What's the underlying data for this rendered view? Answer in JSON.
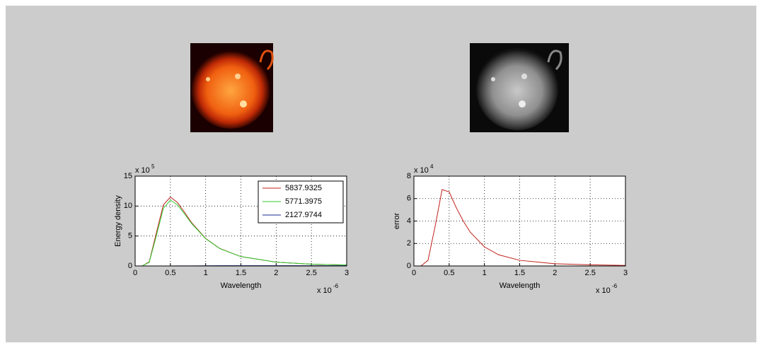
{
  "chart_data": [
    {
      "type": "line",
      "xlabel": "Wavelength",
      "ylabel": "Energy density",
      "x": [
        0,
        0.1,
        0.2,
        0.3,
        0.4,
        0.5,
        0.6,
        0.7,
        0.8,
        1.0,
        1.2,
        1.5,
        2.0,
        2.5,
        3.0
      ],
      "series": [
        {
          "name": "5837.9325",
          "color": "#c0201a",
          "values": [
            0,
            0,
            0.68,
            5.48,
            10.2,
            11.5,
            10.6,
            8.96,
            7.24,
            4.59,
            2.92,
            1.56,
            0.64,
            0.3,
            0.16
          ]
        },
        {
          "name": "5771.3975",
          "color": "#2ecc2e",
          "values": [
            0,
            0,
            0.6,
            5.0,
            9.6,
            11.0,
            10.2,
            8.7,
            7.1,
            4.55,
            2.9,
            1.56,
            0.64,
            0.3,
            0.16
          ]
        },
        {
          "name": "2127.9744",
          "color": "#1a2a9a",
          "values": [
            0,
            0,
            0,
            0,
            0,
            0,
            0.01,
            0.01,
            0.02,
            0.03,
            0.04,
            0.05,
            0.05,
            0.05,
            0.04
          ]
        }
      ],
      "xlim": [
        0,
        3
      ],
      "ylim": [
        0,
        15
      ],
      "xticks": [
        0,
        0.5,
        1,
        1.5,
        2,
        2.5,
        3
      ],
      "yticks": [
        0,
        5,
        10,
        15
      ],
      "x_multiplier": "x 10",
      "x_exponent": "-6",
      "y_multiplier": "x 10",
      "y_exponent": "5",
      "grid": true,
      "legend": "upper right"
    },
    {
      "type": "line",
      "xlabel": "Wavelength",
      "ylabel": "error",
      "x": [
        0,
        0.1,
        0.2,
        0.3,
        0.4,
        0.5,
        0.6,
        0.7,
        0.8,
        1.0,
        1.2,
        1.5,
        2.0,
        2.5,
        3.0
      ],
      "series": [
        {
          "color": "#c0201a",
          "values": [
            0,
            0,
            0.5,
            3.5,
            6.8,
            6.6,
            5.2,
            4.0,
            3.0,
            1.7,
            1.0,
            0.5,
            0.2,
            0.1,
            0.05
          ]
        }
      ],
      "xlim": [
        0,
        3
      ],
      "ylim": [
        0,
        8
      ],
      "xticks": [
        0,
        0.5,
        1,
        1.5,
        2,
        2.5,
        3
      ],
      "yticks": [
        0,
        2,
        4,
        6,
        8
      ],
      "x_multiplier": "x 10",
      "x_exponent": "-6",
      "y_multiplier": "x 10",
      "y_exponent": "4",
      "grid": true
    }
  ]
}
